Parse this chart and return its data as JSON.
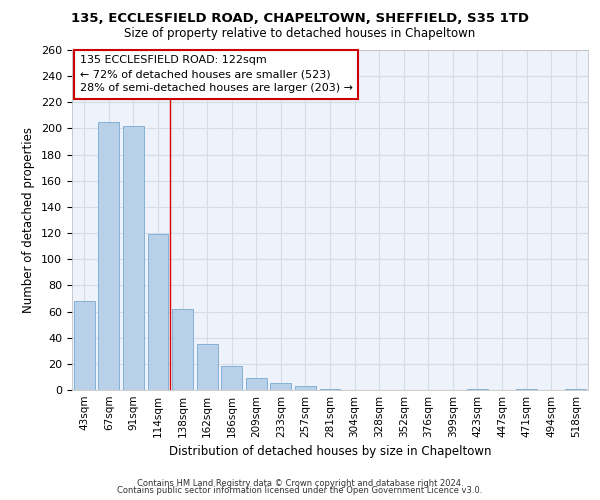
{
  "title_line1": "135, ECCLESFIELD ROAD, CHAPELTOWN, SHEFFIELD, S35 1TD",
  "title_line2": "Size of property relative to detached houses in Chapeltown",
  "xlabel": "Distribution of detached houses by size in Chapeltown",
  "ylabel": "Number of detached properties",
  "categories": [
    "43sqm",
    "67sqm",
    "91sqm",
    "114sqm",
    "138sqm",
    "162sqm",
    "186sqm",
    "209sqm",
    "233sqm",
    "257sqm",
    "281sqm",
    "304sqm",
    "328sqm",
    "352sqm",
    "376sqm",
    "399sqm",
    "423sqm",
    "447sqm",
    "471sqm",
    "494sqm",
    "518sqm"
  ],
  "values": [
    68,
    205,
    202,
    119,
    62,
    35,
    18,
    9,
    5,
    3,
    1,
    0,
    0,
    0,
    0,
    0,
    1,
    0,
    1,
    0,
    1
  ],
  "bar_color": "#b8d0e8",
  "bar_edgecolor": "#7aaad0",
  "grid_color": "#d4dce8",
  "background_color": "#eef2fa",
  "red_line_x": 3.5,
  "annotation_text": "135 ECCLESFIELD ROAD: 122sqm\n← 72% of detached houses are smaller (523)\n28% of semi-detached houses are larger (203) →",
  "annotation_box_color": "#ffffff",
  "annotation_box_edgecolor": "#cc0000",
  "footer_line1": "Contains HM Land Registry data © Crown copyright and database right 2024.",
  "footer_line2": "Contains public sector information licensed under the Open Government Licence v3.0.",
  "ylim": [
    0,
    260
  ],
  "yticks": [
    0,
    20,
    40,
    60,
    80,
    100,
    120,
    140,
    160,
    180,
    200,
    220,
    240,
    260
  ]
}
